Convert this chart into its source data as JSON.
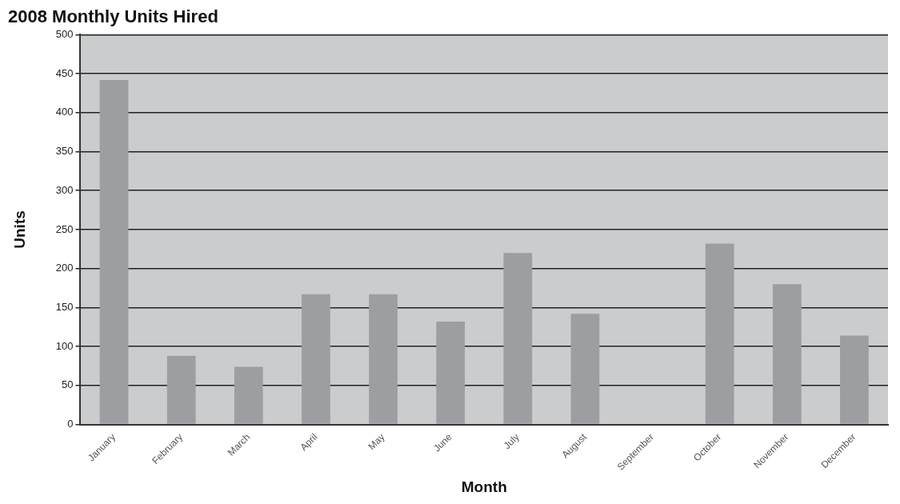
{
  "chart_data": {
    "type": "bar",
    "title": "2008 Monthly Units Hired",
    "xlabel": "Month",
    "ylabel": "Units",
    "categories": [
      "January",
      "February",
      "March",
      "April",
      "May",
      "June",
      "July",
      "August",
      "September",
      "October",
      "November",
      "December"
    ],
    "values": [
      442,
      88,
      74,
      167,
      167,
      132,
      220,
      142,
      0,
      232,
      180,
      114
    ],
    "color": "#9d9ea2",
    "ylim": [
      0,
      500
    ],
    "yticks": [
      0,
      50,
      100,
      150,
      200,
      250,
      300,
      350,
      400,
      450,
      500
    ],
    "grid": "y"
  }
}
